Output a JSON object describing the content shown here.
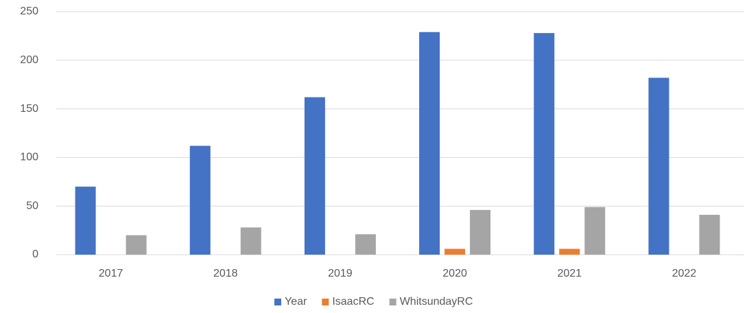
{
  "chart_data": {
    "type": "bar",
    "categories": [
      "2017",
      "2018",
      "2019",
      "2020",
      "2021",
      "2022"
    ],
    "series": [
      {
        "name": "Year",
        "color": "#4472c4",
        "values": [
          70,
          112,
          162,
          229,
          228,
          182
        ]
      },
      {
        "name": "IsaacRC",
        "color": "#ed7d31",
        "values": [
          0,
          0,
          0,
          6,
          6,
          0
        ]
      },
      {
        "name": "WhitsundayRC",
        "color": "#a5a5a5",
        "values": [
          20,
          28,
          21,
          46,
          49,
          41
        ]
      }
    ],
    "ylim": [
      0,
      250
    ],
    "yticks": [
      0,
      50,
      100,
      150,
      200,
      250
    ],
    "grid": true,
    "legend": "bottom"
  }
}
